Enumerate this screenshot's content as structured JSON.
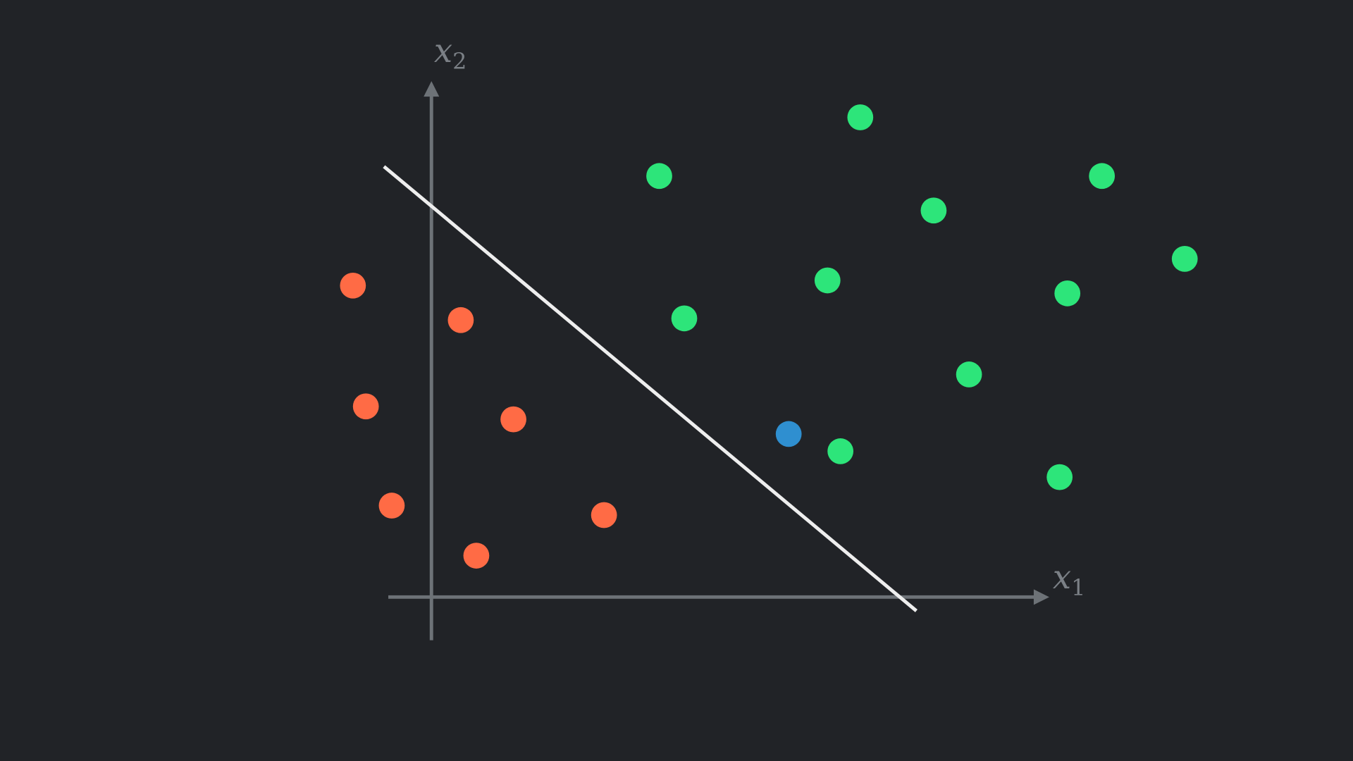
{
  "axes": {
    "x_label": {
      "base": "x",
      "subscript": "1"
    },
    "y_label": {
      "base": "x",
      "subscript": "2"
    }
  }
}
